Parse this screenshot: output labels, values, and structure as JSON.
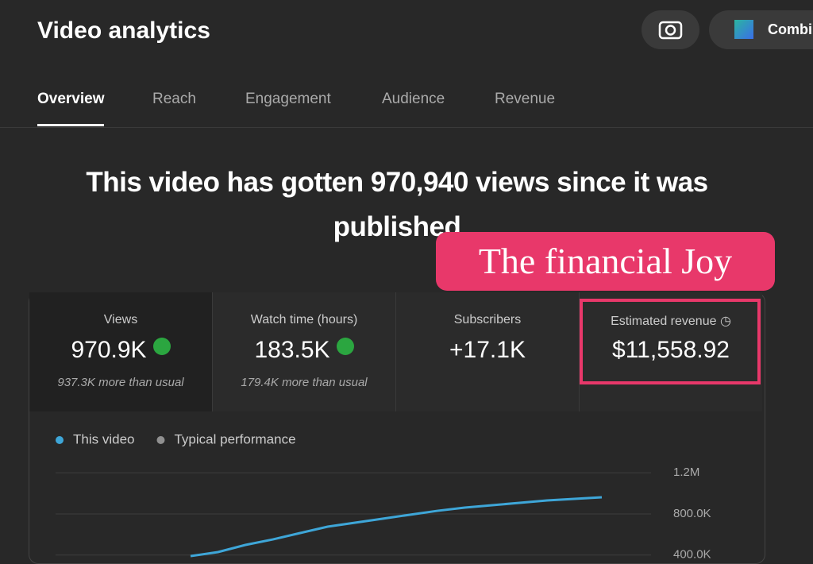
{
  "header": {
    "title": "Video analytics",
    "button": "Combi"
  },
  "tabs": [
    "Overview",
    "Reach",
    "Engagement",
    "Audience",
    "Revenue"
  ],
  "headline": {
    "line1": "This video has gotten 970,940 views since it was",
    "line2": "published"
  },
  "badge": "The financial Joy",
  "metrics": [
    {
      "label": "Views",
      "value": "970.9K",
      "note": "937.3K more than usual"
    },
    {
      "label": "Watch time (hours)",
      "value": "183.5K",
      "note": "179.4K more than usual"
    },
    {
      "label": "Subscribers",
      "value": "+17.1K"
    },
    {
      "label": "Estimated revenue",
      "value": "$11,558.92"
    }
  ],
  "chart_data": {
    "type": "line",
    "series": [
      {
        "name": "This video",
        "color": "#3ea6d8",
        "values": [
          390000,
          428600,
          498000,
          552000,
          614000,
          676000,
          714500,
          753000,
          792000,
          830000,
          861000,
          884500,
          907700,
          931000,
          946000,
          962000
        ]
      },
      {
        "name": "Typical performance",
        "color": "#909090",
        "values": []
      }
    ],
    "ylim": [
      390000,
      1240000
    ],
    "yticks": [
      {
        "value": 400000,
        "label": "400.0K"
      },
      {
        "value": 800000,
        "label": "800.0K"
      },
      {
        "value": 1200000,
        "label": "1.2M"
      }
    ],
    "grid": true
  }
}
